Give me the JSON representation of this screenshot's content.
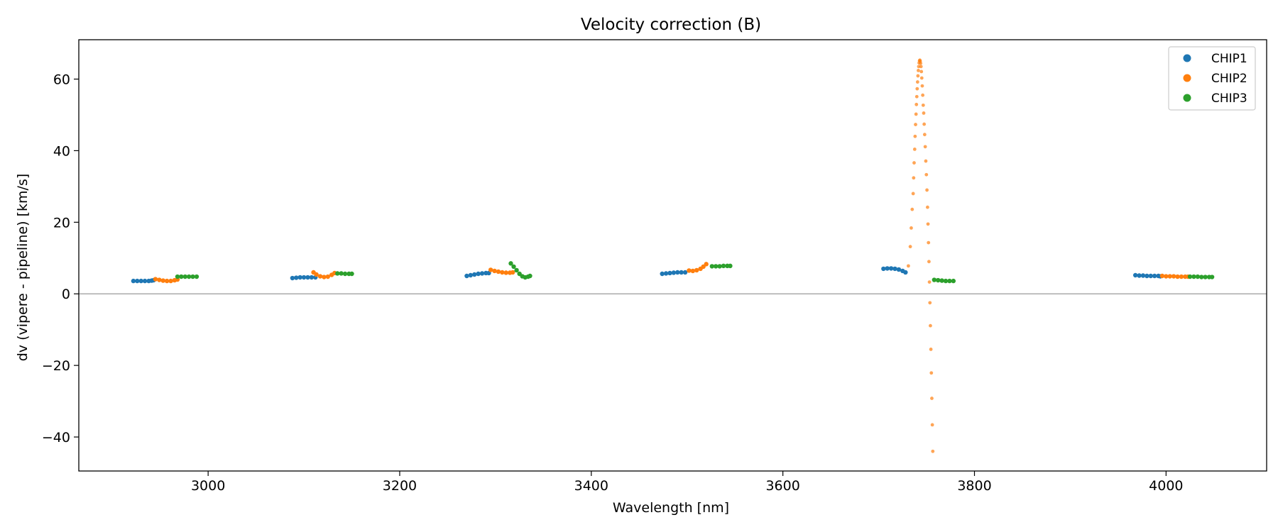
{
  "chart_data": {
    "type": "scatter",
    "title": "Velocity correction (B)",
    "xlabel": "Wavelength [nm]",
    "ylabel": "dv (vipere - pipeline) [km/s]",
    "xlim": [
      2865,
      4105
    ],
    "ylim": [
      -49.5,
      71
    ],
    "xticks": [
      3000,
      3200,
      3400,
      3600,
      3800,
      4000
    ],
    "xtick_labels": [
      "3000",
      "3200",
      "3400",
      "3600",
      "3800",
      "4000"
    ],
    "yticks": [
      -40,
      -20,
      0,
      20,
      40,
      60
    ],
    "ytick_labels": [
      "−40",
      "−20",
      "0",
      "20",
      "40",
      "60"
    ],
    "zero_line": true,
    "grid": false,
    "legend_position": "top-right",
    "series": [
      {
        "name": "CHIP1",
        "color": "#1f77b4",
        "points": [
          [
            2922,
            3.6
          ],
          [
            2926,
            3.6
          ],
          [
            2930,
            3.6
          ],
          [
            2934,
            3.6
          ],
          [
            2938,
            3.6
          ],
          [
            2941,
            3.7
          ],
          [
            2943,
            3.8
          ],
          [
            3088,
            4.4
          ],
          [
            3092,
            4.5
          ],
          [
            3096,
            4.6
          ],
          [
            3100,
            4.6
          ],
          [
            3104,
            4.6
          ],
          [
            3108,
            4.6
          ],
          [
            3112,
            4.6
          ],
          [
            3270,
            5.0
          ],
          [
            3274,
            5.2
          ],
          [
            3278,
            5.4
          ],
          [
            3282,
            5.6
          ],
          [
            3286,
            5.7
          ],
          [
            3290,
            5.8
          ],
          [
            3293,
            5.8
          ],
          [
            3474,
            5.6
          ],
          [
            3478,
            5.7
          ],
          [
            3482,
            5.8
          ],
          [
            3486,
            5.9
          ],
          [
            3490,
            6.0
          ],
          [
            3494,
            6.0
          ],
          [
            3498,
            6.0
          ],
          [
            3705,
            7.0
          ],
          [
            3709,
            7.1
          ],
          [
            3713,
            7.1
          ],
          [
            3717,
            7.0
          ],
          [
            3721,
            6.8
          ],
          [
            3725,
            6.4
          ],
          [
            3728,
            6.0
          ],
          [
            3968,
            5.2
          ],
          [
            3972,
            5.1
          ],
          [
            3976,
            5.1
          ],
          [
            3980,
            5.0
          ],
          [
            3984,
            5.0
          ],
          [
            3988,
            5.0
          ],
          [
            3992,
            5.0
          ],
          [
            3994,
            4.9
          ]
        ]
      },
      {
        "name": "CHIP2",
        "color": "#ff7f0e",
        "points": [
          [
            2945,
            4.1
          ],
          [
            2949,
            3.9
          ],
          [
            2953,
            3.7
          ],
          [
            2957,
            3.6
          ],
          [
            2961,
            3.6
          ],
          [
            2965,
            3.8
          ],
          [
            2968,
            4.0
          ],
          [
            3110,
            6.0
          ],
          [
            3113,
            5.4
          ],
          [
            3117,
            4.9
          ],
          [
            3121,
            4.7
          ],
          [
            3125,
            4.8
          ],
          [
            3129,
            5.3
          ],
          [
            3132,
            5.8
          ],
          [
            3295,
            6.7
          ],
          [
            3299,
            6.4
          ],
          [
            3303,
            6.2
          ],
          [
            3307,
            6.0
          ],
          [
            3311,
            5.9
          ],
          [
            3315,
            5.9
          ],
          [
            3318,
            6.0
          ],
          [
            3502,
            6.5
          ],
          [
            3506,
            6.4
          ],
          [
            3510,
            6.6
          ],
          [
            3514,
            7.0
          ],
          [
            3517,
            7.6
          ],
          [
            3520,
            8.3
          ],
          [
            3996,
            5.0
          ],
          [
            4000,
            4.9
          ],
          [
            4004,
            4.9
          ],
          [
            4008,
            4.9
          ],
          [
            4012,
            4.8
          ],
          [
            4016,
            4.8
          ],
          [
            4020,
            4.8
          ],
          [
            4023,
            4.8
          ]
        ]
      },
      {
        "name": "CHIP2",
        "color": "#ff7f0e",
        "alpha": 0.7,
        "points": [
          [
            3731,
            7.8
          ],
          [
            3733,
            13.2
          ],
          [
            3734,
            18.4
          ],
          [
            3735,
            23.6
          ],
          [
            3736,
            28.0
          ],
          [
            3736.5,
            32.4
          ],
          [
            3737,
            36.6
          ],
          [
            3737.6,
            40.4
          ],
          [
            3738,
            44.0
          ],
          [
            3738.5,
            47.3
          ],
          [
            3739,
            50.2
          ],
          [
            3739.4,
            52.9
          ],
          [
            3739.8,
            55.1
          ],
          [
            3740.2,
            57.3
          ],
          [
            3740.6,
            59.2
          ],
          [
            3741,
            60.9
          ],
          [
            3741.4,
            62.4
          ],
          [
            3741.8,
            63.5
          ],
          [
            3742.2,
            64.5
          ],
          [
            3742.6,
            65.1
          ],
          [
            3743,
            65.3
          ],
          [
            3743.4,
            65.0
          ],
          [
            3743.8,
            64.4
          ],
          [
            3744.2,
            63.5
          ],
          [
            3744.6,
            62.1
          ],
          [
            3745,
            60.3
          ],
          [
            3745.5,
            58.1
          ],
          [
            3746,
            55.5
          ],
          [
            3746.5,
            52.7
          ],
          [
            3747,
            50.5
          ],
          [
            3747.5,
            47.4
          ],
          [
            3748,
            44.5
          ],
          [
            3748.6,
            41.1
          ],
          [
            3749.2,
            37.1
          ],
          [
            3749.8,
            33.3
          ],
          [
            3750.4,
            29.0
          ],
          [
            3751,
            24.2
          ],
          [
            3751.5,
            19.5
          ],
          [
            3752,
            14.3
          ],
          [
            3752.5,
            9.0
          ],
          [
            3753,
            3.3
          ],
          [
            3753.5,
            -2.5
          ],
          [
            3754,
            -8.9
          ],
          [
            3754.5,
            -15.5
          ],
          [
            3755,
            -22.1
          ],
          [
            3755.5,
            -29.2
          ],
          [
            3756,
            -36.6
          ],
          [
            3756.5,
            -44.0
          ]
        ]
      },
      {
        "name": "CHIP3",
        "color": "#2ca02c",
        "points": [
          [
            2968,
            4.8
          ],
          [
            2972,
            4.8
          ],
          [
            2976,
            4.8
          ],
          [
            2980,
            4.8
          ],
          [
            2984,
            4.8
          ],
          [
            2988,
            4.8
          ],
          [
            3135,
            5.7
          ],
          [
            3139,
            5.7
          ],
          [
            3143,
            5.6
          ],
          [
            3147,
            5.6
          ],
          [
            3150,
            5.6
          ],
          [
            3316,
            8.5
          ],
          [
            3319,
            7.6
          ],
          [
            3322,
            6.6
          ],
          [
            3325,
            5.6
          ],
          [
            3328,
            4.9
          ],
          [
            3331,
            4.6
          ],
          [
            3334,
            4.8
          ],
          [
            3336,
            5.0
          ],
          [
            3526,
            7.7
          ],
          [
            3530,
            7.7
          ],
          [
            3534,
            7.7
          ],
          [
            3538,
            7.8
          ],
          [
            3542,
            7.8
          ],
          [
            3545,
            7.8
          ],
          [
            3758,
            3.9
          ],
          [
            3762,
            3.8
          ],
          [
            3766,
            3.7
          ],
          [
            3770,
            3.6
          ],
          [
            3774,
            3.6
          ],
          [
            3778,
            3.6
          ],
          [
            4025,
            4.8
          ],
          [
            4029,
            4.8
          ],
          [
            4033,
            4.8
          ],
          [
            4037,
            4.7
          ],
          [
            4041,
            4.7
          ],
          [
            4045,
            4.7
          ],
          [
            4048,
            4.7
          ]
        ]
      }
    ]
  }
}
